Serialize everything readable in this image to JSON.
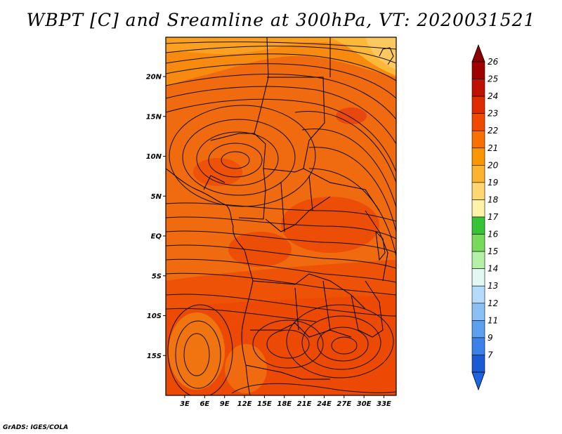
{
  "title": "WBPT [C] and Sreamline at 300hPa, VT: 2020031521",
  "credit": "GrADS: IGES/COLA",
  "map": {
    "lat_range": [
      -20,
      25
    ],
    "lon_range": [
      0,
      36
    ],
    "lat_ticks": [
      {
        "value": 20,
        "label": "20N"
      },
      {
        "value": 15,
        "label": "15N"
      },
      {
        "value": 10,
        "label": "10N"
      },
      {
        "value": 5,
        "label": "5N"
      },
      {
        "value": 0,
        "label": "EQ"
      },
      {
        "value": -5,
        "label": "5S"
      },
      {
        "value": -10,
        "label": "10S"
      },
      {
        "value": -15,
        "label": "15S"
      }
    ],
    "lon_ticks": [
      {
        "value": 3,
        "label": "3E"
      },
      {
        "value": 6,
        "label": "6E"
      },
      {
        "value": 9,
        "label": "9E"
      },
      {
        "value": 12,
        "label": "12E"
      },
      {
        "value": 15,
        "label": "15E"
      },
      {
        "value": 18,
        "label": "18E"
      },
      {
        "value": 21,
        "label": "21E"
      },
      {
        "value": 24,
        "label": "24E"
      },
      {
        "value": 27,
        "label": "27E"
      },
      {
        "value": 30,
        "label": "30E"
      },
      {
        "value": 33,
        "label": "33E"
      }
    ]
  },
  "colorbar": {
    "levels": [
      {
        "label": "26",
        "color": "#a00000"
      },
      {
        "label": "25",
        "color": "#c01000"
      },
      {
        "label": "24",
        "color": "#e02a00"
      },
      {
        "label": "23",
        "color": "#f04a00"
      },
      {
        "label": "22",
        "color": "#f87000"
      },
      {
        "label": "21",
        "color": "#fa9600"
      },
      {
        "label": "20",
        "color": "#fcb430"
      },
      {
        "label": "19",
        "color": "#fdd870"
      },
      {
        "label": "18",
        "color": "#fdf2a8"
      },
      {
        "label": "17",
        "color": "#36c436"
      },
      {
        "label": "16",
        "color": "#78da5a"
      },
      {
        "label": "15",
        "color": "#b4f0a8"
      },
      {
        "label": "14",
        "color": "#e2f8f2"
      },
      {
        "label": "13",
        "color": "#b4dcfa"
      },
      {
        "label": "12",
        "color": "#8cc0f4"
      },
      {
        "label": "11",
        "color": "#5ca0f0"
      },
      {
        "label": "9",
        "color": "#3a82e8"
      },
      {
        "label": "7",
        "color": "#1a5ad4"
      }
    ],
    "top_arrow_color": "#8a0000",
    "bottom_arrow_color": "#1e64e0"
  }
}
